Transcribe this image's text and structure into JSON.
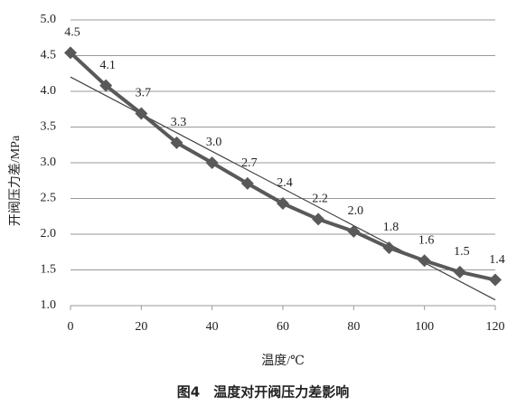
{
  "chart_data": {
    "type": "line",
    "caption": "图4　温度对开阀压力差影响",
    "xlabel": "温度/℃",
    "ylabel": "开阀压力差/MPa",
    "x": [
      0,
      10,
      20,
      30,
      40,
      50,
      60,
      70,
      80,
      90,
      100,
      110,
      120
    ],
    "series": [
      {
        "color": "#595959",
        "values": [
          4.54,
          4.08,
          3.69,
          3.28,
          3.0,
          2.71,
          2.43,
          2.21,
          2.04,
          1.81,
          1.63,
          1.47,
          1.36
        ],
        "value_labels": [
          "4.5",
          "4.1",
          "3.7",
          "3.3",
          "3.0",
          "2.7",
          "2.4",
          "2.2",
          "2.0",
          "1.8",
          "1.6",
          "1.5",
          "1.4"
        ]
      }
    ],
    "trendline": {
      "color": "#404040",
      "x": [
        0,
        120
      ],
      "values": [
        4.2,
        1.08
      ]
    },
    "xlim": [
      0,
      120
    ],
    "xticks": [
      0,
      20,
      40,
      60,
      80,
      100,
      120
    ],
    "ylim": [
      1,
      5
    ],
    "yticks": [
      {
        "value": 1,
        "label": "1.0"
      },
      1.5,
      {
        "value": 2,
        "label": "2.0"
      },
      2.5,
      {
        "value": 3,
        "label": "3.0"
      },
      3.5,
      {
        "value": 4,
        "label": "4.0"
      },
      4.5,
      {
        "value": 5,
        "label": "5.0"
      }
    ],
    "grid": true
  }
}
